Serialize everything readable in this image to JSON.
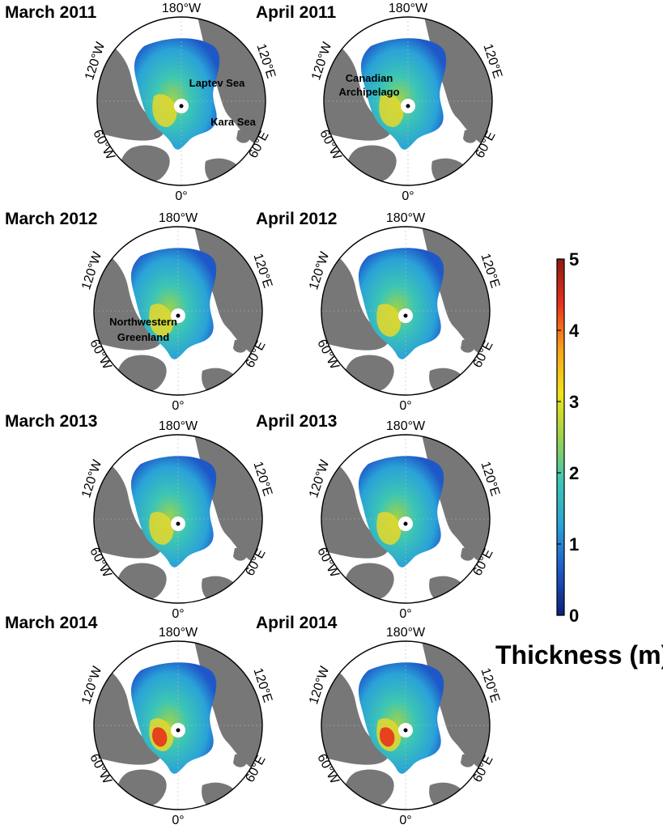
{
  "units_title": "Thickness (m)",
  "legend": {
    "min": 0,
    "max": 5,
    "ticks": [
      "0",
      "1",
      "2",
      "3",
      "4",
      "5"
    ],
    "colors": [
      "#0b1f7a",
      "#1e58c8",
      "#2aa2d8",
      "#3cc6b4",
      "#9ed24a",
      "#f2e21a",
      "#f7a01b",
      "#e8321a",
      "#8b1a14"
    ]
  },
  "longitude_labels": {
    "top": "180°W",
    "upper_left": "120°W",
    "upper_right": "120°E",
    "lower_left": "60°W",
    "lower_right": "60°E",
    "bottom": "0°"
  },
  "maps": [
    {
      "title": "March 2011",
      "regions": [
        "Laptev Sea",
        "Kara Sea"
      ]
    },
    {
      "title": "April 2011",
      "regions": [
        "Canadian",
        "Archipelago"
      ]
    },
    {
      "title": "March 2012",
      "regions": [
        "Northwestern",
        "Greenland"
      ]
    },
    {
      "title": "April 2012",
      "regions": []
    },
    {
      "title": "March 2013",
      "regions": []
    },
    {
      "title": "April 2013",
      "regions": []
    },
    {
      "title": "March 2014",
      "regions": []
    },
    {
      "title": "April 2014",
      "regions": []
    }
  ],
  "colors": {
    "land": "#777777",
    "ocean": "#ffffff",
    "ice_low": "#1e58c8",
    "ice_mid": "#2aa2d8",
    "ice_high": "#9ed24a",
    "ice_peak": "#e8321a"
  }
}
